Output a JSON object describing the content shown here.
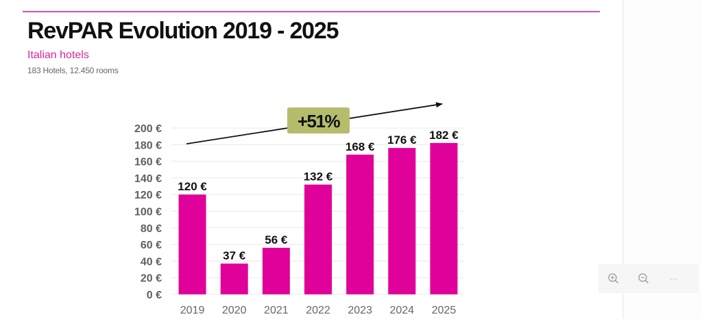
{
  "slide": {
    "title": "RevPAR Evolution 2019 - 2025",
    "subtitle": "Italian hotels",
    "meta": "183 Hotels, 12.450 rooms"
  },
  "colors": {
    "accent": "#e0009a",
    "rule": "#d94fb0",
    "subtitle": "#d9259f",
    "badge": "#b5bd6d",
    "grid": "#e8e8e8"
  },
  "toolbar": {
    "zoom_in_icon": "zoom-in-icon",
    "zoom_out_icon": "zoom-out-icon",
    "more_label": "···"
  },
  "chart_data": {
    "type": "bar",
    "title": "RevPAR Evolution 2019 - 2025",
    "subtitle": "Italian hotels",
    "categories": [
      "2019",
      "2020",
      "2021",
      "2022",
      "2023",
      "2024",
      "2025"
    ],
    "values": [
      120,
      37,
      56,
      132,
      168,
      176,
      182
    ],
    "data_labels": [
      "120 €",
      "37 €",
      "56 €",
      "132 €",
      "168 €",
      "176 €",
      "182 €"
    ],
    "xlabel": "",
    "ylabel": "",
    "ylim": [
      0,
      200
    ],
    "yticks": [
      0,
      20,
      40,
      60,
      80,
      100,
      120,
      140,
      160,
      180,
      200
    ],
    "ytick_labels": [
      "0 €",
      "20 €",
      "40 €",
      "60 €",
      "80 €",
      "100 €",
      "120 €",
      "140 €",
      "160 €",
      "180 €",
      "200 €"
    ],
    "grid": true,
    "legend": "none",
    "annotation": {
      "type": "trend-arrow",
      "label": "+51%",
      "from_value": 181,
      "to_value": 229
    }
  }
}
